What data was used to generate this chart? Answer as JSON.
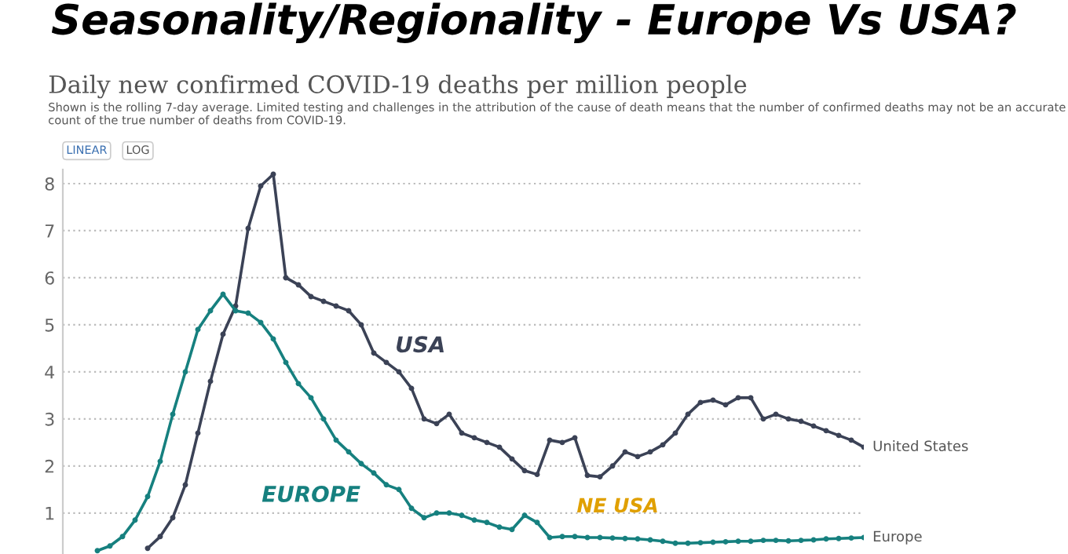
{
  "chart_data": {
    "type": "line",
    "title": "Seasonality/Regionality - Europe Vs USA?",
    "subtitle": "Daily new confirmed COVID-19 deaths per million people",
    "annotations": [
      "Shown is the rolling 7-day average. Limited testing and challenges in the attribution of the cause of death means that the number of confirmed deaths may not be an accurate count of the true number of deaths from COVID-19.",
      "LINEAR",
      "LOG",
      "USA",
      "EUROPE",
      "NE USA"
    ],
    "categories": [
      null,
      null,
      null,
      null,
      null,
      null,
      null,
      null,
      null,
      null,
      null,
      null,
      null,
      null,
      null,
      null,
      null,
      null,
      null,
      null,
      null,
      null,
      null,
      null,
      null,
      null,
      null,
      null,
      null,
      null,
      null,
      null,
      null,
      null,
      null,
      null,
      null,
      null,
      null,
      null,
      null,
      null,
      null,
      null,
      null,
      null,
      null,
      null,
      null,
      null,
      null,
      null,
      null,
      null,
      null,
      null,
      null,
      null,
      null,
      null,
      null,
      null,
      null
    ],
    "series": [
      {
        "name": "United States",
        "color": "#3b4256",
        "values": [
          null,
          null,
          null,
          null,
          null,
          0.25,
          0.5,
          0.9,
          1.6,
          2.7,
          3.8,
          4.8,
          5.4,
          7.05,
          7.95,
          8.2,
          6.0,
          5.85,
          5.6,
          5.5,
          5.4,
          5.3,
          5.0,
          4.4,
          4.2,
          4.0,
          3.65,
          3.0,
          2.9,
          3.1,
          2.7,
          2.6,
          2.5,
          2.4,
          2.15,
          1.9,
          1.82,
          2.55,
          2.5,
          2.6,
          1.8,
          1.77,
          2.0,
          2.3,
          2.2,
          2.3,
          2.45,
          2.7,
          3.1,
          3.35,
          3.4,
          3.3,
          3.45,
          3.45,
          3.0,
          3.1,
          3.0,
          2.95,
          2.85,
          2.75,
          2.65,
          2.55,
          2.4
        ]
      },
      {
        "name": "Europe",
        "color": "#16807f",
        "values": [
          null,
          0.2,
          0.3,
          0.5,
          0.85,
          1.35,
          2.1,
          3.1,
          4.0,
          4.9,
          5.3,
          5.65,
          5.3,
          5.25,
          5.05,
          4.7,
          4.2,
          3.75,
          3.45,
          3.0,
          2.55,
          2.3,
          2.05,
          1.85,
          1.6,
          1.5,
          1.1,
          0.9,
          1.0,
          1.0,
          0.95,
          0.85,
          0.8,
          0.7,
          0.65,
          0.95,
          0.8,
          0.48,
          0.5,
          0.5,
          0.48,
          0.48,
          0.47,
          0.46,
          0.45,
          0.43,
          0.4,
          0.36,
          0.36,
          0.37,
          0.38,
          0.39,
          0.4,
          0.4,
          0.42,
          0.42,
          0.41,
          0.42,
          0.43,
          0.45,
          0.46,
          0.47,
          0.48
        ]
      }
    ],
    "ylim": [
      0.13,
      8.3
    ],
    "yticks": [
      1,
      2,
      3,
      4,
      5,
      6,
      7,
      8
    ],
    "tick_labels": "y",
    "grid": "y",
    "legend": false,
    "marker": "circle",
    "line_style": "solid"
  }
}
